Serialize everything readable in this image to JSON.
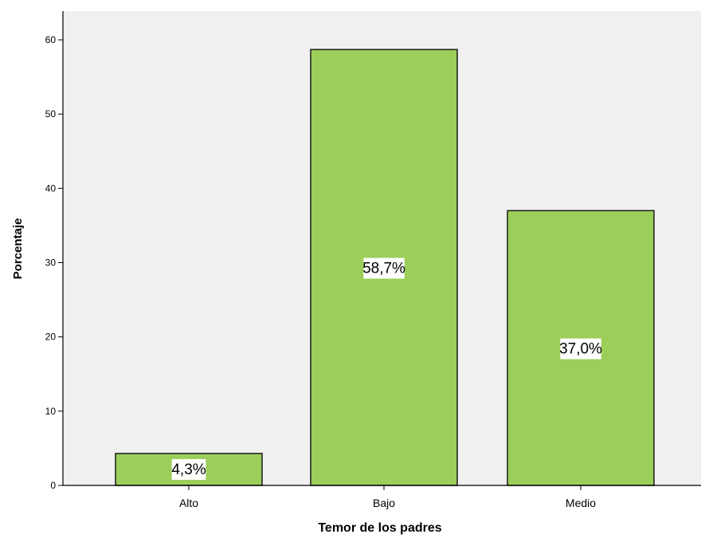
{
  "chart_data": {
    "type": "bar",
    "title": "",
    "xlabel": "Temor de los padres",
    "ylabel": "Porcentaje",
    "categories": [
      "Alto",
      "Bajo",
      "Medio"
    ],
    "values": [
      4.3,
      58.7,
      37.0
    ],
    "value_labels": [
      "4,3%",
      "58,7%",
      "37,0%"
    ],
    "ylim": [
      0,
      60
    ],
    "yticks": [
      0,
      10,
      20,
      30,
      40,
      50,
      60
    ],
    "grid": false,
    "legend": "none",
    "colors": {
      "bar_fill": "#9ccf5a",
      "bar_stroke": "#1a1a1a",
      "plot_background": "#f0f0f0",
      "label_background": "#ffffff"
    }
  }
}
